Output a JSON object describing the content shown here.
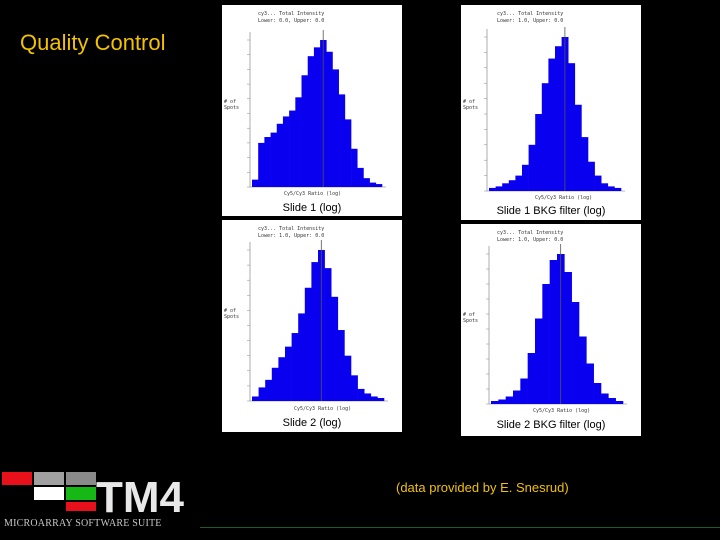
{
  "slide": {
    "title": "Quality Control",
    "credit": "(data provided by E. Snesrud)"
  },
  "branding": {
    "logo_text": "TM4",
    "suite_name": "MICROARRAY SOFTWARE SUITE",
    "colors": {
      "red": "#e8101a",
      "green": "#15b815",
      "gray": "#a0a0a0",
      "white": "#ffffff"
    }
  },
  "colors": {
    "bars": "#0a00f0",
    "marker": "#555555",
    "caption": "#000000"
  },
  "chart_data": [
    {
      "type": "bar",
      "caption": "Slide 1 (log)",
      "values": [
        0.05,
        0.3,
        0.34,
        0.37,
        0.43,
        0.48,
        0.52,
        0.61,
        0.76,
        0.89,
        0.95,
        1.0,
        0.92,
        0.8,
        0.63,
        0.46,
        0.26,
        0.13,
        0.06,
        0.03,
        0.02
      ]
    },
    {
      "type": "bar",
      "caption": "Slide 1 BKG filter (log)",
      "values": [
        0.02,
        0.03,
        0.05,
        0.07,
        0.1,
        0.17,
        0.3,
        0.5,
        0.7,
        0.86,
        0.94,
        1.0,
        0.83,
        0.56,
        0.35,
        0.19,
        0.1,
        0.05,
        0.03,
        0.02
      ]
    },
    {
      "type": "bar",
      "caption": "Slide 2 (log)",
      "values": [
        0.03,
        0.09,
        0.14,
        0.22,
        0.29,
        0.36,
        0.45,
        0.58,
        0.75,
        0.92,
        1.0,
        0.88,
        0.69,
        0.47,
        0.3,
        0.17,
        0.08,
        0.05,
        0.03,
        0.02
      ]
    },
    {
      "type": "bar",
      "caption": "Slide 2 BKG filter (log)",
      "values": [
        0.02,
        0.03,
        0.05,
        0.09,
        0.17,
        0.34,
        0.57,
        0.8,
        0.96,
        1.0,
        0.88,
        0.68,
        0.45,
        0.27,
        0.14,
        0.07,
        0.04,
        0.02
      ]
    }
  ]
}
